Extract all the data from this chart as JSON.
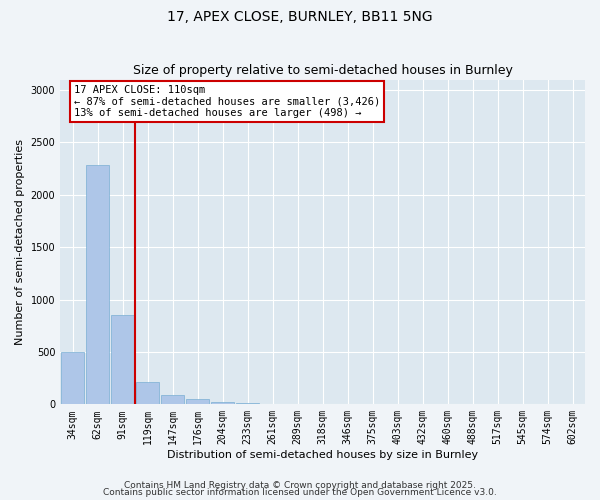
{
  "title": "17, APEX CLOSE, BURNLEY, BB11 5NG",
  "subtitle": "Size of property relative to semi-detached houses in Burnley",
  "xlabel": "Distribution of semi-detached houses by size in Burnley",
  "ylabel": "Number of semi-detached properties",
  "bar_color": "#aec6e8",
  "bar_edge_color": "#7aafd4",
  "background_color": "#dde8f0",
  "grid_color": "#ffffff",
  "vline_color": "#cc0000",
  "annotation_title": "17 APEX CLOSE: 110sqm",
  "annotation_line1": "← 87% of semi-detached houses are smaller (3,426)",
  "annotation_line2": "13% of semi-detached houses are larger (498) →",
  "annotation_box_color": "#cc0000",
  "ylim": [
    0,
    3100
  ],
  "yticks": [
    0,
    500,
    1000,
    1500,
    2000,
    2500,
    3000
  ],
  "bin_labels": [
    "34sqm",
    "62sqm",
    "91sqm",
    "119sqm",
    "147sqm",
    "176sqm",
    "204sqm",
    "233sqm",
    "261sqm",
    "289sqm",
    "318sqm",
    "346sqm",
    "375sqm",
    "403sqm",
    "432sqm",
    "460sqm",
    "488sqm",
    "517sqm",
    "545sqm",
    "574sqm",
    "602sqm"
  ],
  "bin_values": [
    500,
    2280,
    850,
    210,
    90,
    55,
    25,
    15,
    5,
    5,
    0,
    5,
    0,
    0,
    0,
    0,
    0,
    0,
    0,
    0,
    0
  ],
  "footnote1": "Contains HM Land Registry data © Crown copyright and database right 2025.",
  "footnote2": "Contains public sector information licensed under the Open Government Licence v3.0.",
  "title_fontsize": 10,
  "subtitle_fontsize": 9,
  "axis_label_fontsize": 8,
  "tick_fontsize": 7,
  "footnote_fontsize": 6.5,
  "fig_facecolor": "#f0f4f8"
}
